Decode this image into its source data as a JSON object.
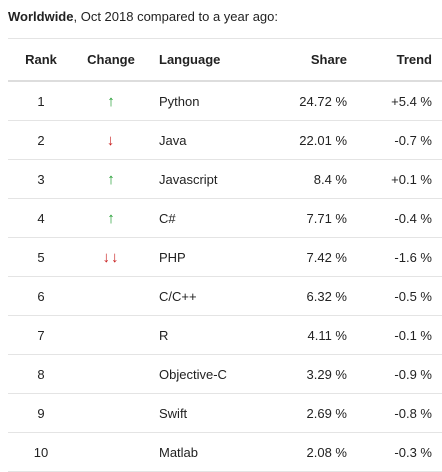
{
  "header": {
    "title": "Worldwide",
    "subtitle": ", Oct 2018 compared to a year ago:"
  },
  "table": {
    "columns": [
      "Rank",
      "Change",
      "Language",
      "Share",
      "Trend"
    ],
    "rows": [
      [
        "1",
        "↑",
        "Python",
        "24.72 %",
        "+5.4 %"
      ],
      [
        "2",
        "↓",
        "Java",
        "22.01 %",
        "-0.7 %"
      ],
      [
        "3",
        "↑",
        "Javascript",
        "8.4 %",
        "+0.1 %"
      ],
      [
        "4",
        "↑",
        "C#",
        "7.71 %",
        "-0.4 %"
      ],
      [
        "5",
        "↓↓",
        "PHP",
        "7.42 %",
        "-1.6 %"
      ],
      [
        "6",
        null,
        "C/C++",
        "6.32 %",
        "-0.5 %"
      ],
      [
        "7",
        null,
        "R",
        "4.11 %",
        "-0.1 %"
      ],
      [
        "8",
        null,
        "Objective-C",
        "3.29 %",
        "-0.9 %"
      ],
      [
        "9",
        null,
        "Swift",
        "2.69 %",
        "-0.8 %"
      ],
      [
        "10",
        null,
        "Matlab",
        "2.08 %",
        "-0.3 %"
      ]
    ]
  }
}
